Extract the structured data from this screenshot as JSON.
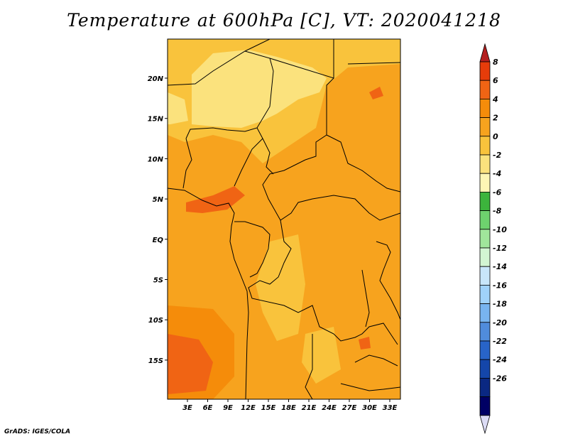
{
  "title": "Temperature at 600hPa [C], VT: 2020041218",
  "credit": "GrADS: IGES/COLA",
  "map": {
    "lon_labels": [
      "3E",
      "6E",
      "9E",
      "12E",
      "15E",
      "18E",
      "21E",
      "24E",
      "27E",
      "30E",
      "33E"
    ],
    "lat_labels": [
      "20N",
      "15N",
      "10N",
      "5N",
      "EQ",
      "5S",
      "10S",
      "15S"
    ]
  },
  "colorbar": {
    "labels": [
      "8",
      "6",
      "4",
      "2",
      "0",
      "-2",
      "-4",
      "-6",
      "-8",
      "-10",
      "-12",
      "-14",
      "-16",
      "-18",
      "-20",
      "-22",
      "-24",
      "-26"
    ],
    "colors": [
      "#b41e1e",
      "#e63c0a",
      "#f06414",
      "#f58c0a",
      "#f7a31e",
      "#f9c33c",
      "#fbe27d",
      "#fdf6b5",
      "#3cb43c",
      "#6ed26e",
      "#a0e69b",
      "#d2f5d2",
      "#c8e6fa",
      "#a0d2fa",
      "#78b4f0",
      "#508cdc",
      "#2864c8",
      "#1446aa",
      "#0a2882",
      "#000064",
      "#dcdcf5"
    ]
  },
  "field_colors": {
    "orange": "#f7a31e",
    "light_orange": "#f9c33c",
    "pale_yellow": "#fbe27d",
    "dark_orange": "#f58c0a",
    "red_orange": "#f06414"
  }
}
